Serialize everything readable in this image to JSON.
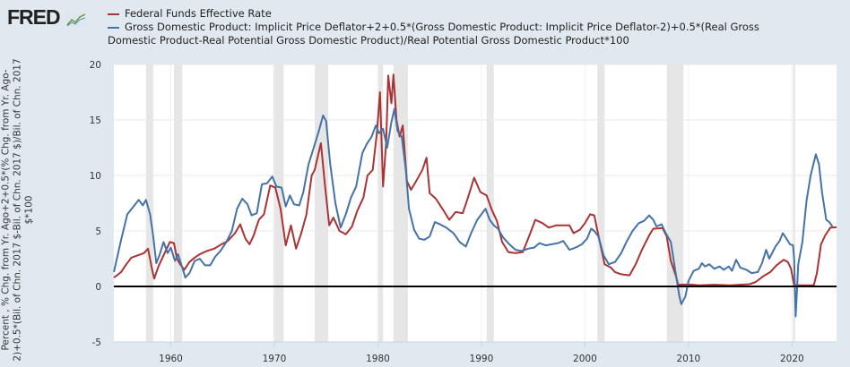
{
  "header": {
    "logo": "FRED",
    "logo_icon": "chart-line-icon"
  },
  "chart_data": {
    "type": "line",
    "title": "",
    "xlabel": "",
    "ylabel": "Percent , % Chg. from Yr. Ago+2+0.5*(% Chg. from Yr. Ago-2)+0.5*(Bil. of Chn. 2017 $-Bil. of Chn. 2017 $)/Bil. of Chn. 2017 $*100",
    "xlim": [
      1954.5,
      2024.3
    ],
    "ylim": [
      -5,
      20
    ],
    "yticks": [
      -5,
      0,
      5,
      10,
      15,
      20
    ],
    "xticks": [
      1960,
      1970,
      1980,
      1990,
      2000,
      2010,
      2020
    ],
    "grid": true,
    "zero_line": true,
    "legend_position": "top",
    "recessions": [
      [
        1957.6,
        1958.3
      ],
      [
        1960.3,
        1961.1
      ],
      [
        1969.9,
        1970.9
      ],
      [
        1973.9,
        1975.2
      ],
      [
        1980.0,
        1980.5
      ],
      [
        1981.5,
        1982.9
      ],
      [
        1990.5,
        1991.2
      ],
      [
        2001.2,
        2001.9
      ],
      [
        2007.9,
        2009.5
      ],
      [
        2020.1,
        2020.3
      ]
    ],
    "series": [
      {
        "name": "Federal Funds Effective Rate",
        "color": "#aa3333",
        "points": [
          [
            1954.5,
            0.8
          ],
          [
            1954.8,
            1.0
          ],
          [
            1955.2,
            1.3
          ],
          [
            1955.7,
            2.0
          ],
          [
            1956.2,
            2.6
          ],
          [
            1956.8,
            2.8
          ],
          [
            1957.4,
            3.0
          ],
          [
            1957.8,
            3.4
          ],
          [
            1958.2,
            1.5
          ],
          [
            1958.4,
            0.7
          ],
          [
            1958.8,
            1.8
          ],
          [
            1959.3,
            2.8
          ],
          [
            1959.9,
            4.0
          ],
          [
            1960.3,
            3.9
          ],
          [
            1960.6,
            2.5
          ],
          [
            1960.9,
            2.0
          ],
          [
            1961.3,
            1.5
          ],
          [
            1961.8,
            2.2
          ],
          [
            1962.3,
            2.6
          ],
          [
            1962.8,
            2.9
          ],
          [
            1963.5,
            3.2
          ],
          [
            1964.2,
            3.4
          ],
          [
            1964.9,
            3.8
          ],
          [
            1965.5,
            4.1
          ],
          [
            1966.2,
            4.8
          ],
          [
            1966.7,
            5.6
          ],
          [
            1967.2,
            4.3
          ],
          [
            1967.6,
            3.8
          ],
          [
            1968.0,
            4.6
          ],
          [
            1968.5,
            6.0
          ],
          [
            1969.0,
            6.5
          ],
          [
            1969.6,
            9.1
          ],
          [
            1970.1,
            8.9
          ],
          [
            1970.6,
            7.0
          ],
          [
            1971.1,
            3.7
          ],
          [
            1971.6,
            5.5
          ],
          [
            1972.1,
            3.4
          ],
          [
            1972.6,
            4.8
          ],
          [
            1973.1,
            6.5
          ],
          [
            1973.6,
            10.0
          ],
          [
            1973.9,
            10.5
          ],
          [
            1974.5,
            12.9
          ],
          [
            1974.9,
            9.0
          ],
          [
            1975.3,
            5.5
          ],
          [
            1975.7,
            6.2
          ],
          [
            1976.3,
            5.0
          ],
          [
            1976.9,
            4.7
          ],
          [
            1977.5,
            5.4
          ],
          [
            1978.0,
            6.8
          ],
          [
            1978.6,
            8.0
          ],
          [
            1979.0,
            10.0
          ],
          [
            1979.5,
            10.5
          ],
          [
            1979.9,
            13.8
          ],
          [
            1980.2,
            17.5
          ],
          [
            1980.5,
            9.0
          ],
          [
            1980.8,
            13.0
          ],
          [
            1981.0,
            19.0
          ],
          [
            1981.3,
            16.5
          ],
          [
            1981.5,
            19.1
          ],
          [
            1981.8,
            15.0
          ],
          [
            1982.1,
            13.5
          ],
          [
            1982.4,
            14.5
          ],
          [
            1982.8,
            9.5
          ],
          [
            1983.2,
            8.7
          ],
          [
            1983.7,
            9.5
          ],
          [
            1984.3,
            10.5
          ],
          [
            1984.7,
            11.6
          ],
          [
            1985.0,
            8.4
          ],
          [
            1985.6,
            7.9
          ],
          [
            1986.3,
            6.9
          ],
          [
            1986.9,
            6.0
          ],
          [
            1987.5,
            6.7
          ],
          [
            1988.2,
            6.6
          ],
          [
            1988.8,
            8.3
          ],
          [
            1989.3,
            9.8
          ],
          [
            1989.9,
            8.5
          ],
          [
            1990.5,
            8.2
          ],
          [
            1991.0,
            6.9
          ],
          [
            1991.5,
            5.9
          ],
          [
            1992.0,
            4.0
          ],
          [
            1992.6,
            3.1
          ],
          [
            1993.3,
            3.0
          ],
          [
            1994.0,
            3.1
          ],
          [
            1994.6,
            4.5
          ],
          [
            1995.2,
            6.0
          ],
          [
            1995.9,
            5.7
          ],
          [
            1996.5,
            5.3
          ],
          [
            1997.2,
            5.5
          ],
          [
            1997.9,
            5.5
          ],
          [
            1998.5,
            5.5
          ],
          [
            1998.9,
            4.8
          ],
          [
            1999.5,
            5.1
          ],
          [
            2000.0,
            5.7
          ],
          [
            2000.5,
            6.5
          ],
          [
            2000.9,
            6.4
          ],
          [
            2001.3,
            4.6
          ],
          [
            2001.9,
            2.0
          ],
          [
            2002.5,
            1.7
          ],
          [
            2002.9,
            1.3
          ],
          [
            2003.5,
            1.1
          ],
          [
            2004.3,
            1.0
          ],
          [
            2004.9,
            2.0
          ],
          [
            2005.5,
            3.3
          ],
          [
            2006.2,
            4.6
          ],
          [
            2006.6,
            5.2
          ],
          [
            2007.5,
            5.25
          ],
          [
            2007.9,
            4.5
          ],
          [
            2008.3,
            2.3
          ],
          [
            2008.8,
            0.9
          ],
          [
            2009.0,
            0.15
          ],
          [
            2010.0,
            0.18
          ],
          [
            2011.0,
            0.1
          ],
          [
            2012.5,
            0.15
          ],
          [
            2014.0,
            0.1
          ],
          [
            2015.9,
            0.2
          ],
          [
            2016.5,
            0.4
          ],
          [
            2017.2,
            0.9
          ],
          [
            2017.9,
            1.3
          ],
          [
            2018.5,
            1.9
          ],
          [
            2019.2,
            2.4
          ],
          [
            2019.6,
            2.2
          ],
          [
            2019.9,
            1.6
          ],
          [
            2020.2,
            0.1
          ],
          [
            2021.0,
            0.1
          ],
          [
            2022.1,
            0.1
          ],
          [
            2022.4,
            1.2
          ],
          [
            2022.8,
            3.8
          ],
          [
            2023.2,
            4.6
          ],
          [
            2023.7,
            5.3
          ],
          [
            2024.3,
            5.33
          ]
        ]
      },
      {
        "name": "Gross Domestic Product: Implicit Price Deflator+2+0.5*(Gross Domestic Product: Implicit Price Deflator-2)+0.5*(Real Gross Domestic Product-Real Potential Gross Domestic Product)/Real Potential Gross Domestic Product*100",
        "color": "#4572a7",
        "points": [
          [
            1954.5,
            1.3
          ],
          [
            1955.2,
            4.2
          ],
          [
            1955.8,
            6.5
          ],
          [
            1956.4,
            7.2
          ],
          [
            1956.9,
            7.8
          ],
          [
            1957.3,
            7.3
          ],
          [
            1957.6,
            7.8
          ],
          [
            1958.0,
            6.5
          ],
          [
            1958.3,
            4.5
          ],
          [
            1958.6,
            2.1
          ],
          [
            1958.9,
            2.8
          ],
          [
            1959.3,
            4.0
          ],
          [
            1959.7,
            3.0
          ],
          [
            1960.0,
            3.5
          ],
          [
            1960.4,
            2.3
          ],
          [
            1960.7,
            2.9
          ],
          [
            1961.0,
            2.0
          ],
          [
            1961.4,
            0.8
          ],
          [
            1961.8,
            1.2
          ],
          [
            1962.3,
            2.3
          ],
          [
            1962.8,
            2.5
          ],
          [
            1963.3,
            1.9
          ],
          [
            1963.8,
            1.9
          ],
          [
            1964.3,
            2.7
          ],
          [
            1964.8,
            3.2
          ],
          [
            1965.3,
            3.9
          ],
          [
            1965.9,
            5.0
          ],
          [
            1966.4,
            7.0
          ],
          [
            1966.9,
            7.9
          ],
          [
            1967.4,
            7.4
          ],
          [
            1967.8,
            6.4
          ],
          [
            1968.3,
            6.6
          ],
          [
            1968.8,
            9.2
          ],
          [
            1969.3,
            9.3
          ],
          [
            1969.8,
            9.9
          ],
          [
            1970.2,
            9.0
          ],
          [
            1970.7,
            8.9
          ],
          [
            1971.1,
            7.2
          ],
          [
            1971.5,
            8.2
          ],
          [
            1971.9,
            7.4
          ],
          [
            1972.4,
            7.3
          ],
          [
            1972.8,
            8.5
          ],
          [
            1973.3,
            11.0
          ],
          [
            1973.8,
            12.5
          ],
          [
            1974.3,
            14.0
          ],
          [
            1974.7,
            15.4
          ],
          [
            1975.0,
            14.9
          ],
          [
            1975.4,
            11.0
          ],
          [
            1975.9,
            7.5
          ],
          [
            1976.4,
            5.3
          ],
          [
            1976.9,
            6.5
          ],
          [
            1977.4,
            8.0
          ],
          [
            1977.9,
            9.0
          ],
          [
            1978.5,
            12.0
          ],
          [
            1978.9,
            12.8
          ],
          [
            1979.4,
            13.5
          ],
          [
            1979.8,
            14.5
          ],
          [
            1980.1,
            13.8
          ],
          [
            1980.5,
            14.2
          ],
          [
            1980.9,
            12.5
          ],
          [
            1981.3,
            14.8
          ],
          [
            1981.6,
            16.0
          ],
          [
            1981.9,
            14.0
          ],
          [
            1982.3,
            13.5
          ],
          [
            1982.7,
            10.5
          ],
          [
            1983.0,
            7.0
          ],
          [
            1983.5,
            5.1
          ],
          [
            1984.0,
            4.3
          ],
          [
            1984.5,
            4.2
          ],
          [
            1985.0,
            4.5
          ],
          [
            1985.5,
            5.8
          ],
          [
            1986.0,
            5.6
          ],
          [
            1986.6,
            5.3
          ],
          [
            1987.3,
            4.8
          ],
          [
            1987.9,
            4.0
          ],
          [
            1988.5,
            3.6
          ],
          [
            1989.0,
            4.8
          ],
          [
            1989.6,
            6.0
          ],
          [
            1990.0,
            6.5
          ],
          [
            1990.4,
            7.0
          ],
          [
            1990.8,
            6.0
          ],
          [
            1991.2,
            5.5
          ],
          [
            1991.6,
            5.2
          ],
          [
            1992.1,
            4.4
          ],
          [
            1992.7,
            3.8
          ],
          [
            1993.3,
            3.3
          ],
          [
            1993.9,
            3.2
          ],
          [
            1994.5,
            3.4
          ],
          [
            1995.1,
            3.5
          ],
          [
            1995.6,
            3.9
          ],
          [
            1996.2,
            3.7
          ],
          [
            1996.8,
            3.8
          ],
          [
            1997.4,
            3.9
          ],
          [
            1997.9,
            4.1
          ],
          [
            1998.5,
            3.3
          ],
          [
            1999.1,
            3.5
          ],
          [
            1999.7,
            3.8
          ],
          [
            2000.2,
            4.3
          ],
          [
            2000.6,
            5.2
          ],
          [
            2000.9,
            5.0
          ],
          [
            2001.3,
            4.5
          ],
          [
            2001.8,
            2.8
          ],
          [
            2002.3,
            2.0
          ],
          [
            2002.9,
            2.2
          ],
          [
            2003.5,
            3.0
          ],
          [
            2004.0,
            4.0
          ],
          [
            2004.6,
            5.0
          ],
          [
            2005.2,
            5.7
          ],
          [
            2005.7,
            5.9
          ],
          [
            2006.2,
            6.4
          ],
          [
            2006.6,
            6.0
          ],
          [
            2006.9,
            5.4
          ],
          [
            2007.4,
            5.6
          ],
          [
            2007.8,
            4.8
          ],
          [
            2008.3,
            4.0
          ],
          [
            2008.8,
            1.0
          ],
          [
            2009.1,
            -0.8
          ],
          [
            2009.3,
            -1.6
          ],
          [
            2009.7,
            -0.9
          ],
          [
            2010.0,
            0.5
          ],
          [
            2010.5,
            1.4
          ],
          [
            2011.0,
            1.6
          ],
          [
            2011.3,
            2.1
          ],
          [
            2011.6,
            1.8
          ],
          [
            2012.0,
            2.0
          ],
          [
            2012.5,
            1.6
          ],
          [
            2013.0,
            1.8
          ],
          [
            2013.4,
            1.5
          ],
          [
            2013.9,
            1.8
          ],
          [
            2014.2,
            1.4
          ],
          [
            2014.6,
            2.4
          ],
          [
            2015.0,
            1.7
          ],
          [
            2015.6,
            1.5
          ],
          [
            2016.1,
            1.2
          ],
          [
            2016.7,
            1.3
          ],
          [
            2017.1,
            2.1
          ],
          [
            2017.5,
            3.3
          ],
          [
            2017.8,
            2.5
          ],
          [
            2018.4,
            3.6
          ],
          [
            2018.8,
            4.1
          ],
          [
            2019.1,
            4.8
          ],
          [
            2019.4,
            4.4
          ],
          [
            2019.8,
            3.8
          ],
          [
            2020.1,
            3.7
          ],
          [
            2020.2,
            2.5
          ],
          [
            2020.35,
            -2.7
          ],
          [
            2020.6,
            2.0
          ],
          [
            2021.0,
            4.0
          ],
          [
            2021.4,
            7.7
          ],
          [
            2021.8,
            10.0
          ],
          [
            2022.3,
            11.9
          ],
          [
            2022.6,
            11.0
          ],
          [
            2022.9,
            8.5
          ],
          [
            2023.3,
            6.0
          ],
          [
            2023.6,
            5.8
          ],
          [
            2023.9,
            5.4
          ]
        ]
      }
    ]
  }
}
